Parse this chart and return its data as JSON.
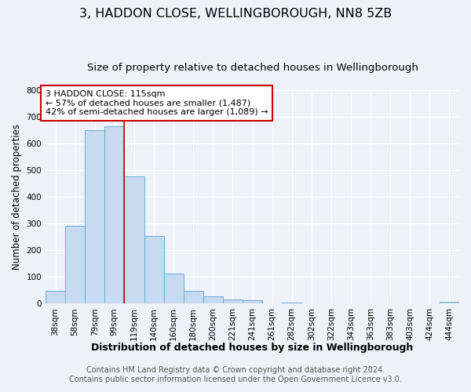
{
  "title": "3, HADDON CLOSE, WELLINGBOROUGH, NN8 5ZB",
  "subtitle": "Size of property relative to detached houses in Wellingborough",
  "xlabel": "Distribution of detached houses by size in Wellingborough",
  "ylabel": "Number of detached properties",
  "bin_labels": [
    "38sqm",
    "58sqm",
    "79sqm",
    "99sqm",
    "119sqm",
    "140sqm",
    "160sqm",
    "180sqm",
    "200sqm",
    "221sqm",
    "241sqm",
    "261sqm",
    "282sqm",
    "302sqm",
    "322sqm",
    "343sqm",
    "363sqm",
    "383sqm",
    "403sqm",
    "424sqm",
    "444sqm"
  ],
  "bar_heights": [
    47,
    293,
    650,
    665,
    478,
    254,
    113,
    49,
    28,
    15,
    13,
    1,
    5,
    1,
    1,
    1,
    0,
    0,
    0,
    0,
    7
  ],
  "bar_color": "#c8daf0",
  "bar_edge_color": "#6bacd6",
  "vline_color": "#cc0000",
  "annotation_text": "3 HADDON CLOSE: 115sqm\n← 57% of detached houses are smaller (1,487)\n42% of semi-detached houses are larger (1,089) →",
  "annotation_box_color": "#ffffff",
  "annotation_box_edge": "#cc0000",
  "ylim": [
    0,
    800
  ],
  "yticks": [
    0,
    100,
    200,
    300,
    400,
    500,
    600,
    700,
    800
  ],
  "footer_line1": "Contains HM Land Registry data © Crown copyright and database right 2024.",
  "footer_line2": "Contains public sector information licensed under the Open Government Licence v3.0.",
  "background_color": "#eef2f8",
  "grid_color": "#ffffff",
  "title_fontsize": 11.5,
  "subtitle_fontsize": 9.5,
  "xlabel_fontsize": 9,
  "ylabel_fontsize": 8.5,
  "tick_fontsize": 7.5,
  "footer_fontsize": 7,
  "annotation_fontsize": 8
}
